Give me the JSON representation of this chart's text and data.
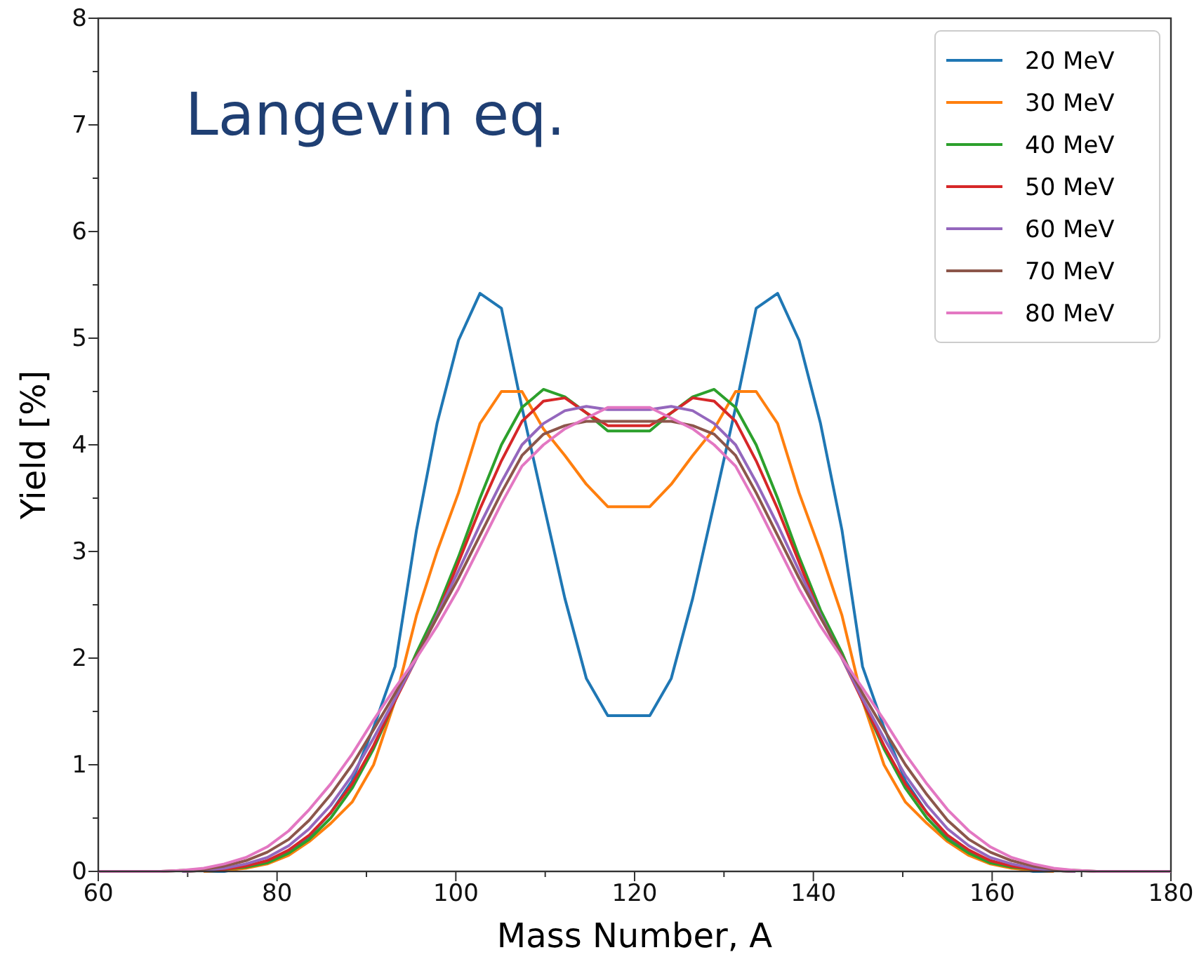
{
  "chart_data": {
    "type": "line",
    "xlabel": "Mass Number, A",
    "ylabel": "Yield [%]",
    "annotations": [
      "Langevin eq."
    ],
    "x": [
      60,
      62.2,
      64.6,
      67.0,
      69.4,
      71.8,
      74.1,
      76.5,
      78.9,
      81.3,
      83.6,
      86.0,
      88.4,
      90.8,
      93.2,
      95.6,
      97.9,
      100.3,
      102.7,
      105.1,
      107.4,
      109.8,
      112.2,
      114.6,
      117.0,
      119.4,
      121.7,
      124.1,
      126.5,
      128.9,
      131.3,
      133.6,
      136.0,
      138.4,
      140.8,
      143.2,
      145.5,
      147.9,
      150.3,
      152.7,
      155.0,
      157.4,
      159.8,
      162.2,
      164.6,
      166.9,
      169.3,
      171.7,
      174.1,
      176.5,
      180
    ],
    "series": [
      {
        "name": "20 MeV",
        "color": "#1f77b4",
        "values": [
          null,
          null,
          null,
          null,
          null,
          0,
          0,
          0.04,
          0.1,
          0.19,
          0.33,
          0.55,
          0.85,
          1.35,
          1.92,
          3.2,
          4.2,
          4.98,
          5.42,
          5.28,
          4.35,
          3.45,
          2.56,
          1.81,
          1.46,
          1.46,
          1.46,
          1.81,
          2.56,
          3.45,
          4.35,
          5.28,
          5.42,
          4.98,
          4.2,
          3.2,
          1.92,
          1.35,
          0.85,
          0.55,
          0.33,
          0.19,
          0.1,
          0.04,
          0,
          0,
          null,
          null,
          null,
          null,
          null
        ]
      },
      {
        "name": "30 MeV",
        "color": "#ff7f0e",
        "values": [
          null,
          null,
          null,
          null,
          null,
          0,
          0.01,
          0.03,
          0.07,
          0.15,
          0.28,
          0.45,
          0.65,
          1.0,
          1.6,
          2.4,
          3.0,
          3.55,
          4.2,
          4.5,
          4.5,
          4.15,
          3.9,
          3.63,
          3.42,
          3.42,
          3.42,
          3.63,
          3.9,
          4.15,
          4.5,
          4.5,
          4.2,
          3.55,
          3.0,
          2.4,
          1.6,
          1.0,
          0.65,
          0.45,
          0.28,
          0.15,
          0.07,
          0.03,
          0.01,
          0,
          null,
          null,
          null,
          null,
          null
        ]
      },
      {
        "name": "40 MeV",
        "color": "#2ca02c",
        "values": [
          null,
          null,
          null,
          null,
          0,
          0.01,
          0.02,
          0.04,
          0.08,
          0.17,
          0.3,
          0.5,
          0.78,
          1.15,
          1.6,
          2.05,
          2.45,
          2.95,
          3.5,
          4.0,
          4.35,
          4.52,
          4.45,
          4.3,
          4.13,
          4.13,
          4.13,
          4.3,
          4.45,
          4.52,
          4.35,
          4.0,
          3.5,
          2.95,
          2.45,
          2.05,
          1.6,
          1.15,
          0.78,
          0.5,
          0.3,
          0.17,
          0.08,
          0.04,
          0.02,
          0.01,
          0,
          null,
          null,
          null,
          null
        ]
      },
      {
        "name": "50 MeV",
        "color": "#d62728",
        "values": [
          null,
          null,
          null,
          null,
          0,
          0.01,
          0.02,
          0.05,
          0.1,
          0.2,
          0.34,
          0.55,
          0.82,
          1.18,
          1.6,
          2.0,
          2.4,
          2.9,
          3.4,
          3.85,
          4.22,
          4.41,
          4.44,
          4.3,
          4.18,
          4.18,
          4.18,
          4.3,
          4.44,
          4.41,
          4.22,
          3.85,
          3.4,
          2.9,
          2.4,
          2.0,
          1.6,
          1.18,
          0.82,
          0.55,
          0.34,
          0.2,
          0.1,
          0.05,
          0.02,
          0.01,
          0,
          null,
          null,
          null,
          null
        ]
      },
      {
        "name": "60 MeV",
        "color": "#9467bd",
        "values": [
          null,
          null,
          null,
          null,
          0,
          0.01,
          0.03,
          0.07,
          0.13,
          0.24,
          0.4,
          0.62,
          0.9,
          1.25,
          1.62,
          2.0,
          2.4,
          2.82,
          3.25,
          3.65,
          4.0,
          4.2,
          4.32,
          4.36,
          4.33,
          4.33,
          4.33,
          4.36,
          4.32,
          4.2,
          4.0,
          3.65,
          3.25,
          2.82,
          2.4,
          2.0,
          1.62,
          1.25,
          0.9,
          0.62,
          0.4,
          0.24,
          0.13,
          0.07,
          0.03,
          0.01,
          0,
          null,
          null,
          null,
          null
        ]
      },
      {
        "name": "70 MeV",
        "color": "#8c564b",
        "values": [
          null,
          null,
          null,
          0,
          0.01,
          0.02,
          0.05,
          0.1,
          0.18,
          0.3,
          0.48,
          0.72,
          1.0,
          1.33,
          1.67,
          2.02,
          2.38,
          2.75,
          3.15,
          3.55,
          3.9,
          4.1,
          4.18,
          4.22,
          4.22,
          4.22,
          4.22,
          4.22,
          4.18,
          4.1,
          3.9,
          3.55,
          3.15,
          2.75,
          2.38,
          2.02,
          1.67,
          1.33,
          1.0,
          0.72,
          0.48,
          0.3,
          0.18,
          0.1,
          0.05,
          0.02,
          0.01,
          0,
          null,
          null,
          null
        ]
      },
      {
        "name": "80 MeV",
        "color": "#e377c2",
        "values": [
          0,
          0,
          0,
          0,
          0.01,
          0.03,
          0.07,
          0.13,
          0.23,
          0.38,
          0.58,
          0.82,
          1.1,
          1.42,
          1.72,
          2.0,
          2.3,
          2.65,
          3.05,
          3.45,
          3.8,
          4.0,
          4.15,
          4.25,
          4.35,
          4.35,
          4.35,
          4.25,
          4.15,
          4.0,
          3.8,
          3.45,
          3.05,
          2.65,
          2.3,
          2.0,
          1.72,
          1.42,
          1.1,
          0.82,
          0.58,
          0.38,
          0.23,
          0.13,
          0.07,
          0.03,
          0.01,
          0,
          0,
          0,
          0
        ]
      }
    ],
    "xlim": [
      60,
      180
    ],
    "xticks": [
      60,
      {
        "value": 70,
        "label": null
      },
      80,
      {
        "value": 90,
        "label": null
      },
      100,
      {
        "value": 110,
        "label": null
      },
      120,
      {
        "value": 130,
        "label": null
      },
      140,
      {
        "value": 150,
        "label": null
      },
      160,
      {
        "value": 170,
        "label": null
      },
      180
    ],
    "ylim": [
      0,
      8
    ],
    "yticks": [
      0,
      {
        "value": 0.5,
        "label": null
      },
      1,
      {
        "value": 1.5,
        "label": null
      },
      2,
      {
        "value": 2.5,
        "label": null
      },
      3,
      {
        "value": 3.5,
        "label": null
      },
      4,
      {
        "value": 4.5,
        "label": null
      },
      5,
      {
        "value": 5.5,
        "label": null
      },
      6,
      {
        "value": 6.5,
        "label": null
      },
      7,
      {
        "value": 7.5,
        "label": null
      },
      8
    ],
    "grid": false,
    "legend": "top right",
    "marker": "none",
    "line_style": "solid"
  }
}
